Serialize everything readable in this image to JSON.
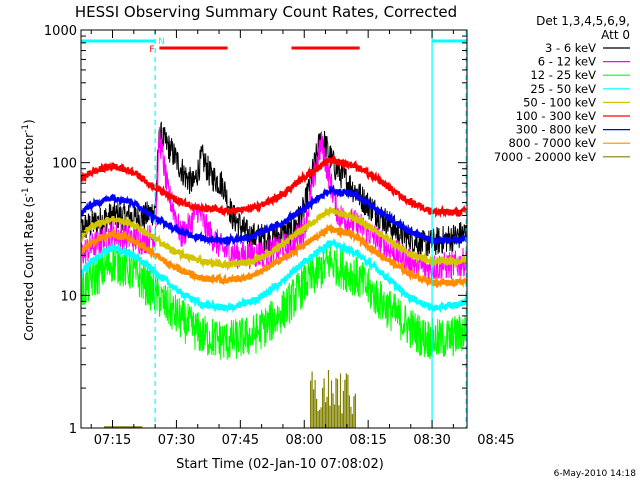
{
  "chart_data": {
    "type": "line",
    "title": "HESSI Observing Summary Count Rates, Corrected",
    "xlabel": "Start Time (02-Jan-10 07:08:02)",
    "ylabel_parts": [
      "Corrected Count Rate (s",
      "-1",
      " detector",
      "-1",
      ")"
    ],
    "ylog": true,
    "ylim": [
      1,
      1000
    ],
    "y_ticks": [
      {
        "value": 1,
        "label": "1"
      },
      {
        "value": 10,
        "label": "10"
      },
      {
        "value": 100,
        "label": "100"
      },
      {
        "value": 1000,
        "label": "1000"
      }
    ],
    "x_range_minutes": [
      7.6,
      98.2
    ],
    "x_ticks": [
      {
        "minute": 15,
        "label": "07:15"
      },
      {
        "minute": 30,
        "label": "07:30"
      },
      {
        "minute": 45,
        "label": "07:45"
      },
      {
        "minute": 60,
        "label": "08:00"
      },
      {
        "minute": 75,
        "label": "08:15"
      },
      {
        "minute": 90,
        "label": "08:30"
      },
      {
        "minute": 105,
        "label": "08:45"
      }
    ],
    "legend_header": [
      "Det 1,3,4,5,6,9,",
      "Att 0"
    ],
    "legend_position": "right",
    "series": [
      {
        "name": "3 - 6 keV",
        "color": "#000000",
        "points": [
          [
            7,
            31
          ],
          [
            15,
            40
          ],
          [
            22,
            38
          ],
          [
            25,
            44
          ],
          [
            26,
            165
          ],
          [
            29,
            120
          ],
          [
            32,
            80
          ],
          [
            34,
            68
          ],
          [
            36,
            110
          ],
          [
            38,
            80
          ],
          [
            41,
            68
          ],
          [
            43,
            40
          ],
          [
            47,
            28
          ],
          [
            52,
            27
          ],
          [
            57,
            30
          ],
          [
            60,
            45
          ],
          [
            62,
            85
          ],
          [
            64,
            160
          ],
          [
            67,
            95
          ],
          [
            70,
            72
          ],
          [
            75,
            48
          ],
          [
            82,
            30
          ],
          [
            88,
            24
          ],
          [
            96,
            28
          ],
          [
            104,
            34
          ]
        ]
      },
      {
        "name": "6 - 12 keV",
        "color": "#ff00ff",
        "points": [
          [
            7,
            20
          ],
          [
            15,
            29
          ],
          [
            22,
            26
          ],
          [
            25,
            28
          ],
          [
            26,
            160
          ],
          [
            28,
            60
          ],
          [
            30,
            38
          ],
          [
            31,
            28
          ],
          [
            33,
            33
          ],
          [
            35,
            45
          ],
          [
            37,
            32
          ],
          [
            39,
            26
          ],
          [
            41,
            22
          ],
          [
            45,
            20
          ],
          [
            52,
            21
          ],
          [
            57,
            24
          ],
          [
            60,
            32
          ],
          [
            62,
            68
          ],
          [
            64,
            140
          ],
          [
            66,
            75
          ],
          [
            68,
            40
          ],
          [
            74,
            32
          ],
          [
            80,
            22
          ],
          [
            88,
            16
          ],
          [
            96,
            17
          ],
          [
            104,
            22
          ]
        ]
      },
      {
        "name": "12 - 25 keV",
        "color": "#00ff00",
        "points": [
          [
            7,
            10
          ],
          [
            10,
            13
          ],
          [
            15,
            18
          ],
          [
            20,
            15
          ],
          [
            24,
            11
          ],
          [
            30,
            7
          ],
          [
            36,
            5
          ],
          [
            42,
            4.5
          ],
          [
            48,
            5
          ],
          [
            54,
            7
          ],
          [
            60,
            12
          ],
          [
            66,
            18
          ],
          [
            72,
            14
          ],
          [
            78,
            9
          ],
          [
            84,
            6
          ],
          [
            88,
            4.8
          ],
          [
            92,
            4.6
          ],
          [
            96,
            5
          ],
          [
            100,
            6
          ],
          [
            104,
            8
          ]
        ]
      },
      {
        "name": "25 - 50 keV",
        "color": "#00ffff",
        "points": [
          [
            7,
            14
          ],
          [
            10,
            18
          ],
          [
            15,
            23
          ],
          [
            20,
            20
          ],
          [
            24,
            16
          ],
          [
            30,
            11
          ],
          [
            36,
            8.5
          ],
          [
            42,
            8
          ],
          [
            48,
            9
          ],
          [
            54,
            12
          ],
          [
            60,
            18
          ],
          [
            66,
            25
          ],
          [
            72,
            21
          ],
          [
            78,
            15
          ],
          [
            84,
            10
          ],
          [
            90,
            8
          ],
          [
            96,
            8.5
          ],
          [
            104,
            11
          ]
        ]
      },
      {
        "name": "50 - 100 keV",
        "color": "#d4c400",
        "points": [
          [
            7,
            27
          ],
          [
            10,
            33
          ],
          [
            15,
            38
          ],
          [
            20,
            34
          ],
          [
            24,
            28
          ],
          [
            30,
            21
          ],
          [
            36,
            18
          ],
          [
            42,
            17
          ],
          [
            48,
            18
          ],
          [
            54,
            23
          ],
          [
            60,
            32
          ],
          [
            66,
            44
          ],
          [
            72,
            38
          ],
          [
            78,
            29
          ],
          [
            84,
            21
          ],
          [
            90,
            18
          ],
          [
            96,
            18
          ],
          [
            104,
            22
          ]
        ]
      },
      {
        "name": "100 - 300 keV",
        "color": "#ff0000",
        "points": [
          [
            7,
            72
          ],
          [
            10,
            85
          ],
          [
            15,
            95
          ],
          [
            20,
            85
          ],
          [
            24,
            68
          ],
          [
            30,
            52
          ],
          [
            36,
            45
          ],
          [
            42,
            43
          ],
          [
            48,
            45
          ],
          [
            54,
            55
          ],
          [
            60,
            78
          ],
          [
            66,
            105
          ],
          [
            72,
            95
          ],
          [
            78,
            72
          ],
          [
            84,
            52
          ],
          [
            90,
            43
          ],
          [
            96,
            42
          ],
          [
            104,
            48
          ]
        ]
      },
      {
        "name": "300 - 800 keV",
        "color": "#0000ff",
        "points": [
          [
            7,
            40
          ],
          [
            10,
            48
          ],
          [
            15,
            55
          ],
          [
            20,
            50
          ],
          [
            24,
            40
          ],
          [
            30,
            31
          ],
          [
            36,
            27
          ],
          [
            42,
            26
          ],
          [
            48,
            28
          ],
          [
            54,
            34
          ],
          [
            60,
            45
          ],
          [
            66,
            62
          ],
          [
            72,
            58
          ],
          [
            78,
            42
          ],
          [
            84,
            31
          ],
          [
            90,
            26
          ],
          [
            96,
            26
          ],
          [
            104,
            29
          ]
        ]
      },
      {
        "name": "800 - 7000 keV",
        "color": "#ff8c00",
        "points": [
          [
            7,
            20
          ],
          [
            10,
            25
          ],
          [
            15,
            29
          ],
          [
            20,
            26
          ],
          [
            24,
            21
          ],
          [
            30,
            16
          ],
          [
            36,
            13.5
          ],
          [
            42,
            13
          ],
          [
            48,
            14
          ],
          [
            54,
            18
          ],
          [
            60,
            24
          ],
          [
            66,
            32
          ],
          [
            72,
            28
          ],
          [
            78,
            20
          ],
          [
            84,
            15
          ],
          [
            90,
            12.5
          ],
          [
            96,
            12.5
          ],
          [
            104,
            15
          ]
        ]
      },
      {
        "name": "7000 - 20000 keV",
        "color": "#808000",
        "points": [
          [
            62,
            1
          ],
          [
            62,
            2.5
          ],
          [
            63,
            1.2
          ],
          [
            64,
            2.7
          ],
          [
            65,
            1.1
          ],
          [
            66,
            2.6
          ],
          [
            67,
            1.3
          ],
          [
            68,
            2.7
          ],
          [
            69,
            1.2
          ],
          [
            70,
            2.4
          ],
          [
            71,
            1.3
          ],
          [
            72,
            2.1
          ]
        ]
      }
    ],
    "annotations": {
      "night_markers": {
        "label": "N",
        "color": "#00ffff",
        "segments": [
          [
            7.6,
            25
          ],
          [
            90,
            98.2
          ]
        ],
        "boundaries": [
          25,
          90,
          98
        ]
      },
      "flare_markers": {
        "label": "F",
        "color": "#ff0000",
        "segments": [
          [
            26,
            42
          ],
          [
            57,
            73
          ]
        ]
      }
    },
    "footer_date": "6-May-2010 14:18"
  }
}
